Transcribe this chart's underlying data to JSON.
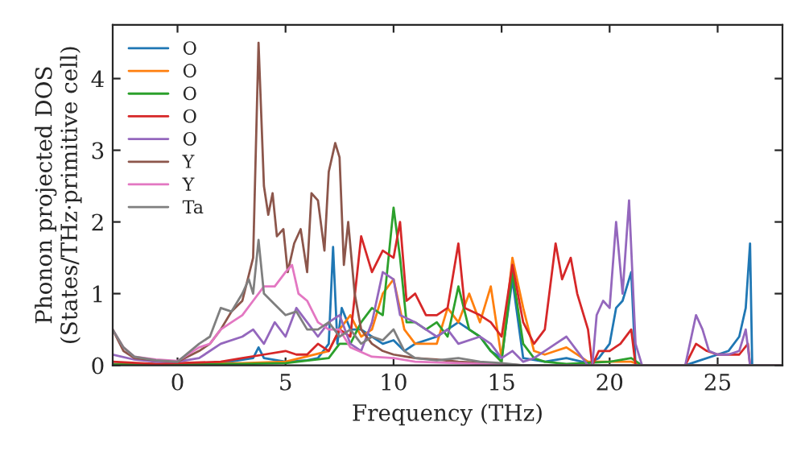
{
  "chart_data": {
    "type": "line",
    "xlabel": "Frequency (THz)",
    "ylabel": "Phonon projected DOS\n(States/THz·primitive cell)",
    "xlim": [
      -3,
      28
    ],
    "ylim": [
      0,
      4.75
    ],
    "xticks": [
      0,
      5,
      10,
      15,
      20,
      25
    ],
    "yticks": [
      0,
      1,
      2,
      3,
      4
    ],
    "grid": false,
    "legend": "top left",
    "marker": "none",
    "line_style": "solid",
    "series": [
      {
        "name": "O",
        "color": "#1f77b4",
        "x": [
          -3,
          0,
          2,
          3.5,
          3.75,
          4,
          5,
          6,
          6.5,
          7,
          7.2,
          7.4,
          7.6,
          8,
          8.5,
          9,
          9.5,
          10,
          10.5,
          11,
          12,
          13,
          13.5,
          14,
          14.5,
          15,
          15.5,
          16,
          17,
          18,
          19,
          19.5,
          20,
          20.3,
          20.6,
          21,
          21.2,
          23.5,
          24,
          25,
          25.5,
          26,
          26.3,
          26.5,
          26.6,
          28
        ],
        "values": [
          0.02,
          0.02,
          0.03,
          0.1,
          0.25,
          0.1,
          0.05,
          0.07,
          0.1,
          0.3,
          1.65,
          0.3,
          0.8,
          0.5,
          0.5,
          0.4,
          0.3,
          0.35,
          0.2,
          0.3,
          0.4,
          0.6,
          0.5,
          0.4,
          0.2,
          0.1,
          1.2,
          0.1,
          0.05,
          0.1,
          0.03,
          0.1,
          0.3,
          0.8,
          0.9,
          1.3,
          0,
          0,
          0.05,
          0.15,
          0.2,
          0.4,
          0.8,
          1.7,
          0,
          0
        ]
      },
      {
        "name": "O",
        "color": "#ff7f0e",
        "x": [
          -3,
          3,
          5,
          7,
          7.5,
          8,
          8.5,
          9,
          9.5,
          10,
          10.5,
          11,
          12,
          12.5,
          13,
          13.5,
          14,
          14.5,
          15,
          15.5,
          16,
          16.5,
          17,
          17.5,
          18,
          19,
          20,
          21,
          21.5,
          28
        ],
        "values": [
          0.01,
          0.03,
          0.05,
          0.2,
          0.5,
          0.7,
          0.4,
          0.5,
          1.0,
          1.2,
          0.5,
          0.3,
          0.3,
          0.8,
          0.6,
          1.0,
          0.6,
          1.1,
          0.1,
          1.5,
          0.8,
          0.2,
          0.15,
          0.2,
          0.25,
          0.05,
          0.05,
          0.05,
          0,
          0
        ]
      },
      {
        "name": "O",
        "color": "#2ca02c",
        "x": [
          -3,
          3,
          5,
          7,
          7.5,
          8,
          8.5,
          9,
          9.5,
          10,
          10.3,
          10.6,
          11,
          11.5,
          12,
          12.5,
          13,
          13.5,
          14,
          14.5,
          15,
          15.5,
          16,
          16.5,
          17,
          18,
          20,
          21,
          21.5,
          28
        ],
        "values": [
          0.01,
          0.02,
          0.03,
          0.1,
          0.3,
          0.3,
          0.6,
          0.8,
          0.7,
          2.2,
          1.5,
          0.6,
          0.6,
          0.5,
          0.6,
          0.4,
          1.1,
          0.5,
          0.4,
          0.2,
          0.05,
          1.3,
          0.3,
          0.1,
          0.05,
          0.02,
          0.05,
          0.1,
          0,
          0
        ]
      },
      {
        "name": "O",
        "color": "#d62728",
        "x": [
          -3,
          -1,
          0,
          2,
          3,
          4,
          5,
          5.5,
          6,
          6.5,
          7,
          7.5,
          8,
          8.5,
          9,
          9.5,
          10,
          10.3,
          10.6,
          11,
          11.5,
          12,
          12.5,
          13,
          13.3,
          14,
          14.5,
          15,
          15.5,
          16,
          16.5,
          17,
          17.5,
          17.8,
          18.2,
          18.5,
          19,
          19.2,
          19.5,
          20,
          20.5,
          21,
          21.2,
          23.5,
          24,
          24.5,
          25,
          26,
          26.4,
          26.5,
          28
        ],
        "values": [
          0.05,
          0.02,
          0.03,
          0.05,
          0.1,
          0.15,
          0.2,
          0.15,
          0.15,
          0.3,
          0.2,
          0.5,
          0.4,
          1.8,
          1.3,
          1.6,
          1.5,
          2.0,
          0.9,
          1.0,
          0.7,
          0.7,
          0.8,
          1.7,
          0.8,
          0.7,
          0.6,
          0.4,
          1.4,
          0.6,
          0.3,
          0.5,
          1.7,
          1.2,
          1.5,
          1.0,
          0.5,
          0,
          0.2,
          0.2,
          0.3,
          0.5,
          0,
          0,
          0.3,
          0.2,
          0.15,
          0.15,
          0.3,
          0,
          0
        ]
      },
      {
        "name": "O",
        "color": "#9467bd",
        "x": [
          -3,
          -2,
          -1,
          0,
          1,
          2,
          3,
          3.5,
          4,
          4.5,
          5,
          5.5,
          6,
          6.5,
          7,
          7.5,
          8,
          8.5,
          9,
          9.5,
          10,
          10.3,
          11,
          11.5,
          12,
          12.5,
          13,
          14,
          14.5,
          15,
          15.5,
          16,
          16.5,
          17,
          17.5,
          18,
          18.5,
          19,
          19.2,
          19.4,
          19.7,
          20,
          20.3,
          20.6,
          20.9,
          21.2,
          21.5,
          23.5,
          24,
          24.3,
          24.6,
          25,
          25.5,
          26,
          26.3,
          26.5,
          28
        ],
        "values": [
          0.15,
          0.08,
          0.05,
          0.05,
          0.1,
          0.3,
          0.4,
          0.5,
          0.3,
          0.6,
          0.4,
          0.8,
          0.6,
          0.4,
          0.6,
          0.7,
          0.3,
          0.2,
          0.6,
          1.3,
          1.2,
          0.7,
          0.6,
          0.5,
          0.4,
          0.5,
          0.3,
          0.4,
          0.3,
          0.1,
          0.2,
          0.05,
          0.1,
          0.2,
          0.3,
          0.4,
          0.2,
          0.0,
          0.0,
          0.7,
          0.9,
          0.8,
          2.0,
          1.0,
          2.3,
          0.3,
          0,
          0,
          0.7,
          0.5,
          0.2,
          0.15,
          0.15,
          0.2,
          0.5,
          0,
          0
        ]
      },
      {
        "name": "Y",
        "color": "#8c564b",
        "x": [
          -3,
          -2.5,
          -2,
          -1,
          0,
          1,
          1.5,
          2,
          2.5,
          3,
          3.5,
          3.75,
          4,
          4.2,
          4.4,
          4.6,
          4.9,
          5.1,
          5.4,
          5.7,
          6.0,
          6.2,
          6.5,
          6.8,
          7.0,
          7.3,
          7.5,
          7.7,
          7.9,
          8.2,
          8.5,
          9,
          9.5,
          10,
          11,
          12,
          13,
          15,
          16,
          28
        ],
        "values": [
          0.5,
          0.2,
          0.1,
          0.07,
          0.05,
          0.2,
          0.3,
          0.5,
          0.75,
          0.9,
          1.5,
          4.5,
          2.5,
          2.1,
          2.4,
          1.8,
          1.9,
          1.3,
          1.7,
          1.9,
          1.3,
          2.4,
          2.3,
          1.6,
          2.7,
          3.1,
          2.9,
          1.4,
          2.0,
          1.0,
          0.5,
          0.3,
          0.2,
          0.15,
          0.1,
          0.08,
          0.05,
          0.02,
          0,
          0
        ]
      },
      {
        "name": "Y",
        "color": "#e377c2",
        "x": [
          -3,
          -2.5,
          -2,
          -1,
          0,
          1,
          1.5,
          2,
          2.5,
          3,
          3.5,
          4,
          4.5,
          5,
          5.3,
          5.6,
          6,
          6.5,
          7,
          7.5,
          8,
          9,
          10,
          11,
          13,
          15,
          16,
          28
        ],
        "values": [
          0.5,
          0.25,
          0.12,
          0.08,
          0.06,
          0.25,
          0.3,
          0.5,
          0.6,
          0.7,
          0.9,
          1.1,
          1.1,
          1.3,
          1.4,
          1.0,
          0.9,
          0.6,
          0.5,
          0.5,
          0.25,
          0.12,
          0.1,
          0.05,
          0.03,
          0.01,
          0,
          0
        ]
      },
      {
        "name": "Ta",
        "color": "#7f7f7f",
        "x": [
          -3,
          -2.5,
          -2,
          -1,
          0,
          1,
          1.5,
          2,
          2.5,
          3,
          3.3,
          3.5,
          3.75,
          4,
          4.5,
          5,
          5.5,
          6,
          6.5,
          7,
          7.5,
          8,
          8.5,
          9,
          9.5,
          10,
          10.5,
          11,
          12,
          13,
          14,
          15,
          16,
          28
        ],
        "values": [
          0.5,
          0.25,
          0.12,
          0.07,
          0.05,
          0.3,
          0.4,
          0.8,
          0.75,
          1.0,
          1.2,
          1.0,
          1.75,
          1.0,
          0.85,
          0.7,
          0.75,
          0.5,
          0.5,
          0.6,
          0.4,
          0.5,
          0.3,
          0.4,
          0.35,
          0.5,
          0.2,
          0.1,
          0.07,
          0.1,
          0.05,
          0.03,
          0,
          0
        ]
      }
    ]
  }
}
